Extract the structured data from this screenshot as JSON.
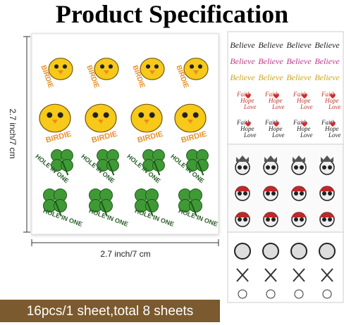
{
  "title": "Product Specification",
  "height_label": "2.7 inch/7 cm",
  "width_label": "2.7 inch/7 cm",
  "banner": "16pcs/1 sheet,total 8 sheets",
  "sticker_texts": {
    "birdie": "BIRDIE",
    "hole_in_one": "HOLE IN ONE",
    "believe": "Believe",
    "faith": "Faith",
    "hope": "Hope",
    "love": "Love"
  }
}
